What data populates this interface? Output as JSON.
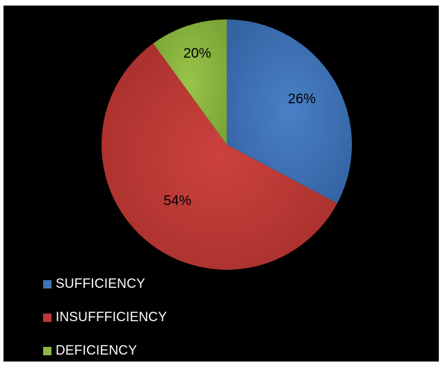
{
  "chart_data": {
    "type": "pie",
    "title": "",
    "slices": [
      {
        "name": "SUFFICIENCY",
        "value": 26,
        "label": "26%",
        "color": "#3f73b8"
      },
      {
        "name": "INSUFFFICIENCY",
        "value": 54,
        "label": "54%",
        "color": "#bf3a36"
      },
      {
        "name": "DEFICIENCY",
        "value": 20,
        "label": "20%",
        "color": "#8db83f"
      }
    ],
    "legend_position": "bottom-left",
    "background": "#000000"
  },
  "legend": {
    "items": [
      {
        "label": "SUFFICIENCY",
        "color": "#3f73b8"
      },
      {
        "label": "INSUFFFICIENCY",
        "color": "#bf3a36"
      },
      {
        "label": "DEFICIENCY",
        "color": "#8db83f"
      }
    ]
  }
}
